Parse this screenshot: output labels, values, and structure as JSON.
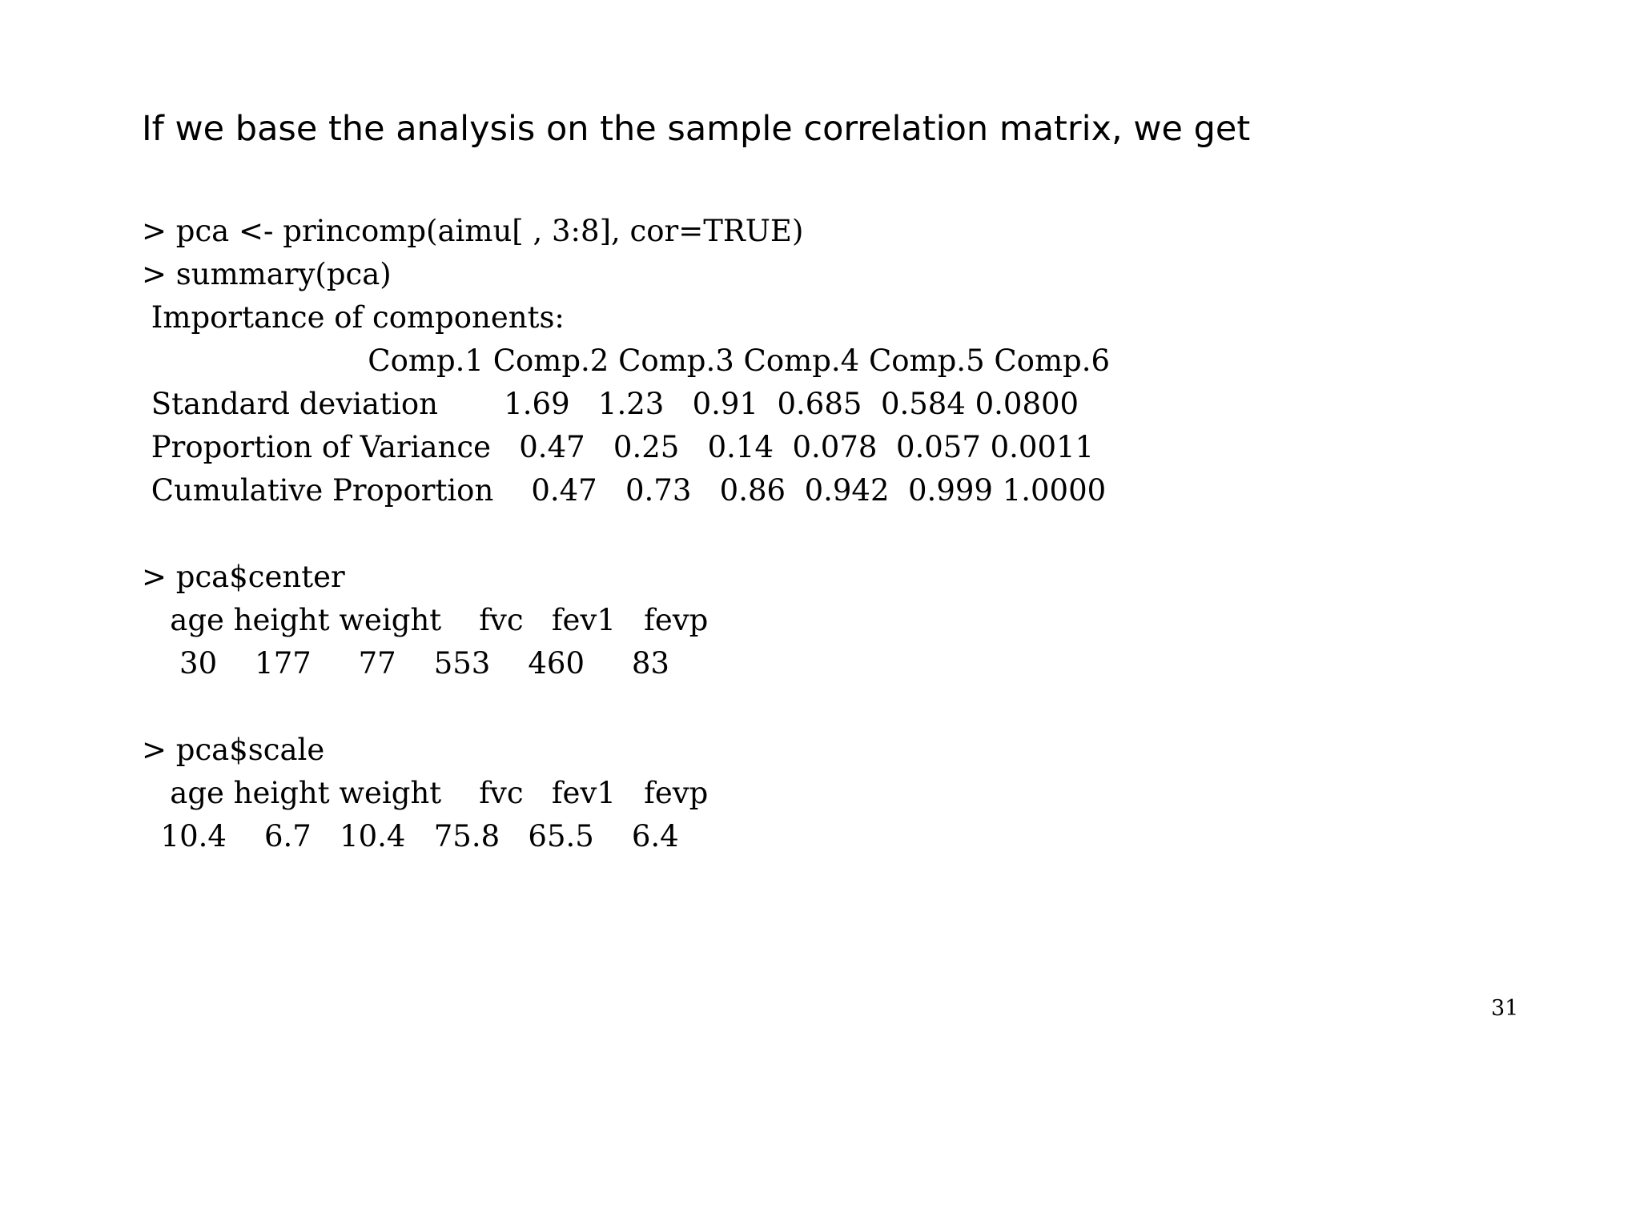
{
  "intro_text": "If we base the analysis on the sample correlation matrix, we get",
  "code_lines": [
    "> pca <- princomp(aimu[ , 3:8], cor=TRUE)",
    "> summary(pca)",
    " Importance of components:",
    "                        Comp.1 Comp.2 Comp.3 Comp.4 Comp.5 Comp.6",
    " Standard deviation       1.69   1.23   0.91  0.685  0.584 0.0800",
    " Proportion of Variance   0.47   0.25   0.14  0.078  0.057 0.0011",
    " Cumulative Proportion    0.47   0.73   0.86  0.942  0.999 1.0000",
    "",
    "> pca$center",
    "   age height weight    fvc   fev1   fevp",
    "    30    177     77    553    460     83",
    "",
    "> pca$scale",
    "   age height weight    fvc   fev1   fevp",
    "  10.4    6.7   10.4   75.8   65.5    6.4"
  ],
  "page_number": "31"
}
